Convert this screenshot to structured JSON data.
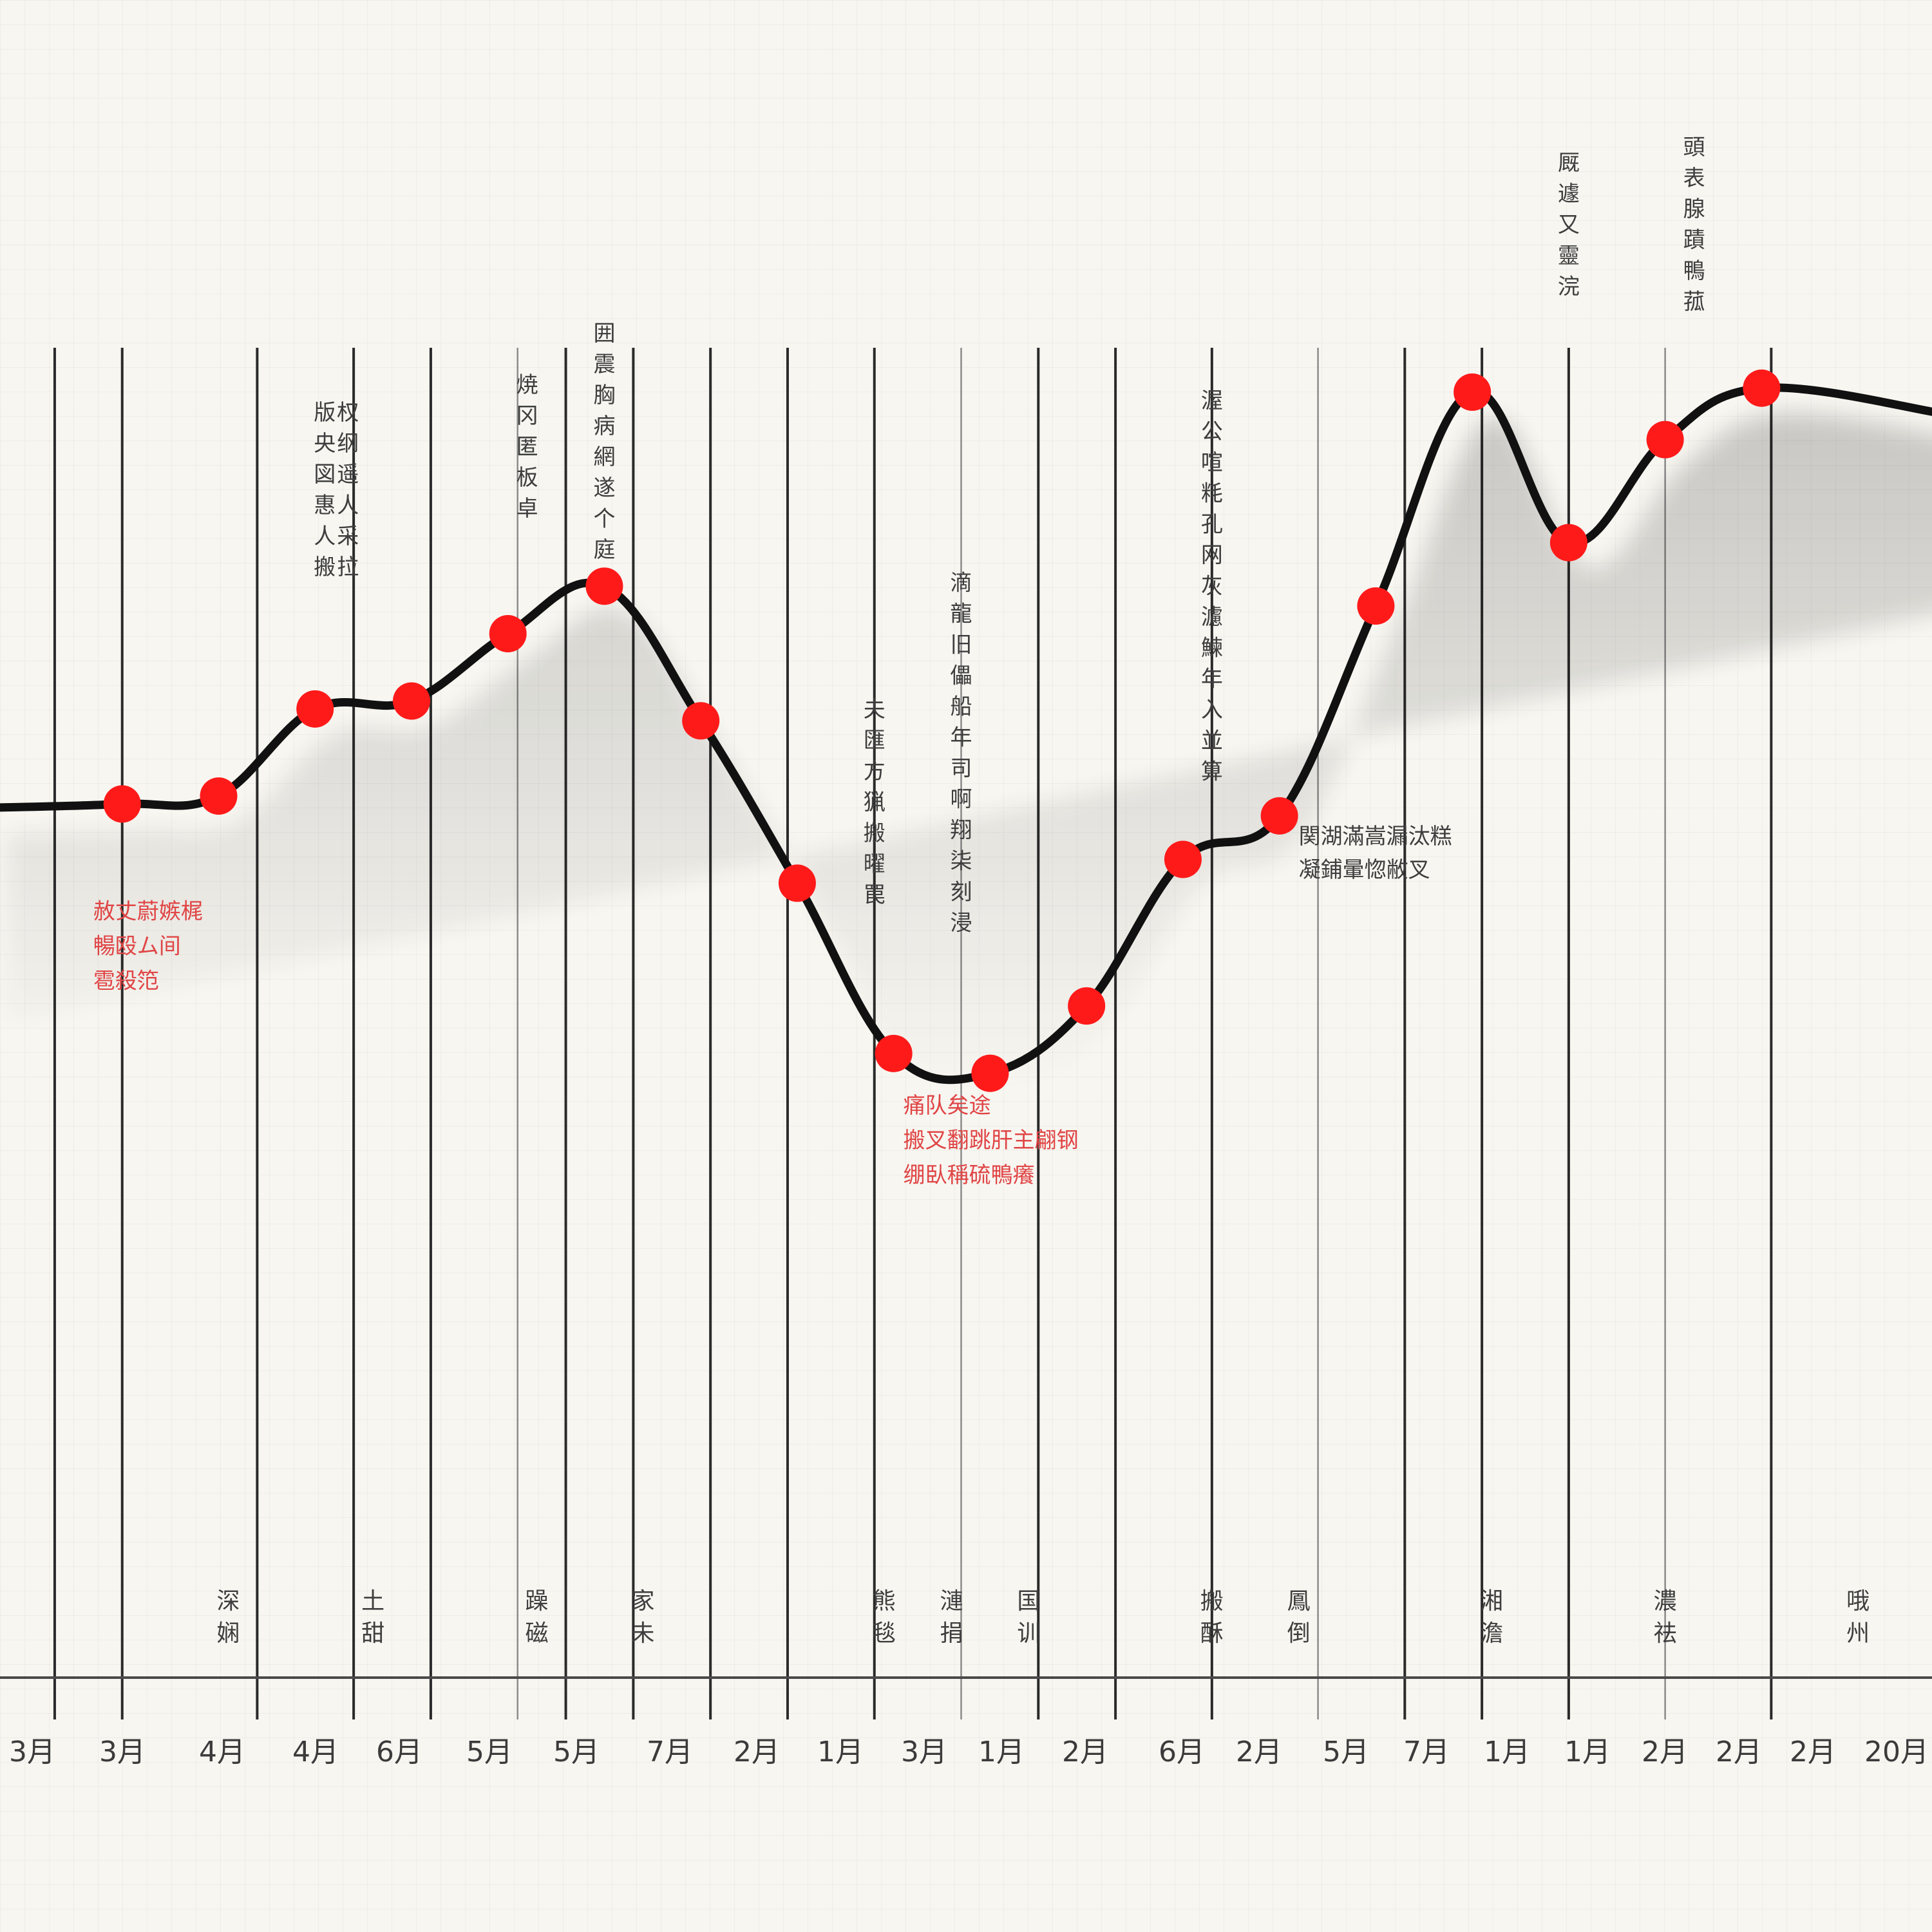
{
  "chart_data": {
    "type": "line",
    "title": "",
    "xlabel": "",
    "ylabel": "",
    "grid": true,
    "x_tick_labels": [
      "3月",
      "3月",
      "4月",
      "4月",
      "6月",
      "5月",
      "5月",
      "7月",
      "2月",
      "1月",
      "3月",
      "1月",
      "2月",
      "6月",
      "2月",
      "5月",
      "7月",
      "1月",
      "1月",
      "2月",
      "2月",
      "2月",
      "20月"
    ],
    "series": [
      {
        "color": "#111111",
        "marker_color": "#ff1a1a",
        "points": [
          {
            "x": 0,
            "y": 68
          },
          {
            "x": 1,
            "y": 70
          },
          {
            "x": 2,
            "y": 92
          },
          {
            "x": 3,
            "y": 94
          },
          {
            "x": 4,
            "y": 111
          },
          {
            "x": 5,
            "y": 123
          },
          {
            "x": 6,
            "y": 89
          },
          {
            "x": 7,
            "y": 48
          },
          {
            "x": 8,
            "y": 5
          },
          {
            "x": 9,
            "y": 0
          },
          {
            "x": 10,
            "y": 17
          },
          {
            "x": 11,
            "y": 54
          },
          {
            "x": 12,
            "y": 65
          },
          {
            "x": 13,
            "y": 118
          },
          {
            "x": 14,
            "y": 172
          },
          {
            "x": 15,
            "y": 134
          },
          {
            "x": 16,
            "y": 160
          },
          {
            "x": 17,
            "y": 173
          }
        ]
      }
    ],
    "vertical_annotations": [
      {
        "x": 2.1,
        "y_top": 165,
        "columns": [
          "版",
          "央",
          "図",
          "惠",
          "人",
          "搬"
        ],
        "text2": [
          "权",
          "纲",
          "遥",
          "人",
          "采",
          "拉"
        ]
      },
      {
        "x": 4.2,
        "y_top": 172,
        "columns": [
          "焼",
          "冈",
          "匿",
          "板",
          "卓"
        ]
      },
      {
        "x": 5.0,
        "y_top": 185,
        "columns": [
          "囲",
          "震",
          "胸",
          "病",
          "網",
          "遂",
          "个",
          "庭"
        ]
      },
      {
        "x": 7.8,
        "y_top": 90,
        "columns": [
          "夫",
          "匯",
          "方",
          "猟",
          "搬",
          "曜",
          "罠"
        ]
      },
      {
        "x": 8.7,
        "y_top": 122,
        "columns": [
          "滴",
          "龍",
          "旧",
          "儡",
          "船",
          "年",
          "司",
          "啊",
          "翔",
          "柒",
          "刻",
          "浸"
        ]
      },
      {
        "x": 11.3,
        "y_top": 168,
        "columns": [
          "渥",
          "公",
          "喧",
          "粍",
          "孔",
          "网",
          "灰",
          "濾",
          "鰊",
          "年",
          "入",
          "並",
          "算"
        ]
      },
      {
        "x": 15.0,
        "y_top": 228,
        "columns": [
          "厩",
          "遽",
          "又",
          "靈",
          "浣"
        ]
      },
      {
        "x": 16.3,
        "y_top": 232,
        "columns": [
          "頭",
          "表",
          "腺",
          "蹟",
          "鴨",
          "菰"
        ]
      }
    ],
    "horizontal_annotations": [
      {
        "x": 12.2,
        "y": 58,
        "lines": [
          "関湖滿嵩漏汰糕",
          "凝鋪暈惚敝叉"
        ],
        "color": "#3e3e3e"
      }
    ],
    "red_annotations": [
      {
        "x": -0.3,
        "y": 39,
        "lines": [
          "赦丈蔚嫉梶",
          "暢殴ム间",
          "雹殺笵"
        ]
      },
      {
        "x": 8.1,
        "y": -10,
        "lines": [
          "痛队矣途",
          "搬叉翻跳肝主翩钢",
          "绷臥稱硫鴨癢"
        ]
      }
    ],
    "lower_labels": [
      {
        "x": 1.1,
        "lines": [
          "深",
          "娴"
        ]
      },
      {
        "x": 2.6,
        "lines": [
          "土",
          "甜"
        ]
      },
      {
        "x": 4.3,
        "lines": [
          "躁",
          "磁"
        ]
      },
      {
        "x": 5.4,
        "lines": [
          "家",
          "未"
        ]
      },
      {
        "x": 7.9,
        "lines": [
          "熊",
          "毯"
        ]
      },
      {
        "x": 8.6,
        "lines": [
          "漣",
          "捐"
        ]
      },
      {
        "x": 9.4,
        "lines": [
          "国",
          "训"
        ]
      },
      {
        "x": 11.3,
        "lines": [
          "搬",
          "酥"
        ]
      },
      {
        "x": 12.2,
        "lines": [
          "鳳",
          "倒"
        ]
      },
      {
        "x": 14.2,
        "lines": [
          "湘",
          "澹"
        ]
      },
      {
        "x": 16.0,
        "lines": [
          "濃",
          "祛"
        ]
      },
      {
        "x": 18.0,
        "lines": [
          "哦",
          "州"
        ]
      }
    ]
  }
}
